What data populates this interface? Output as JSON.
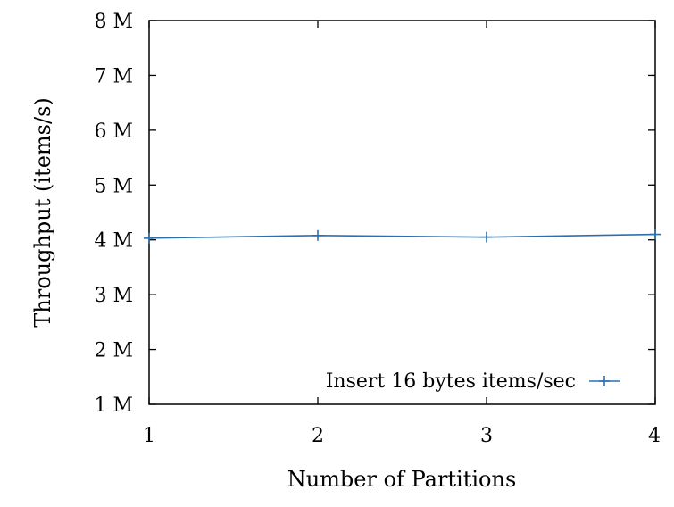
{
  "chart_data": {
    "type": "line",
    "title": "",
    "xlabel": "Number of Partitions",
    "ylabel": "Throughput (items/s)",
    "x": [
      1,
      2,
      3,
      4
    ],
    "xlim": [
      1,
      4
    ],
    "ylim": [
      1000000,
      8000000
    ],
    "xticks": [
      1,
      2,
      3,
      4
    ],
    "yticks": [
      1000000,
      2000000,
      3000000,
      4000000,
      5000000,
      6000000,
      7000000,
      8000000
    ],
    "xtick_labels": [
      "1",
      "2",
      "3",
      "4"
    ],
    "ytick_labels": [
      "1 M",
      "2 M",
      "3 M",
      "4 M",
      "5 M",
      "6 M",
      "7 M",
      "8 M"
    ],
    "grid": false,
    "legend_position": "bottom-right",
    "series": [
      {
        "name": "Insert 16 bytes items/sec",
        "color": "#2a70b0",
        "marker": "plus",
        "values": [
          4030000,
          4080000,
          4050000,
          4100000
        ]
      }
    ]
  }
}
